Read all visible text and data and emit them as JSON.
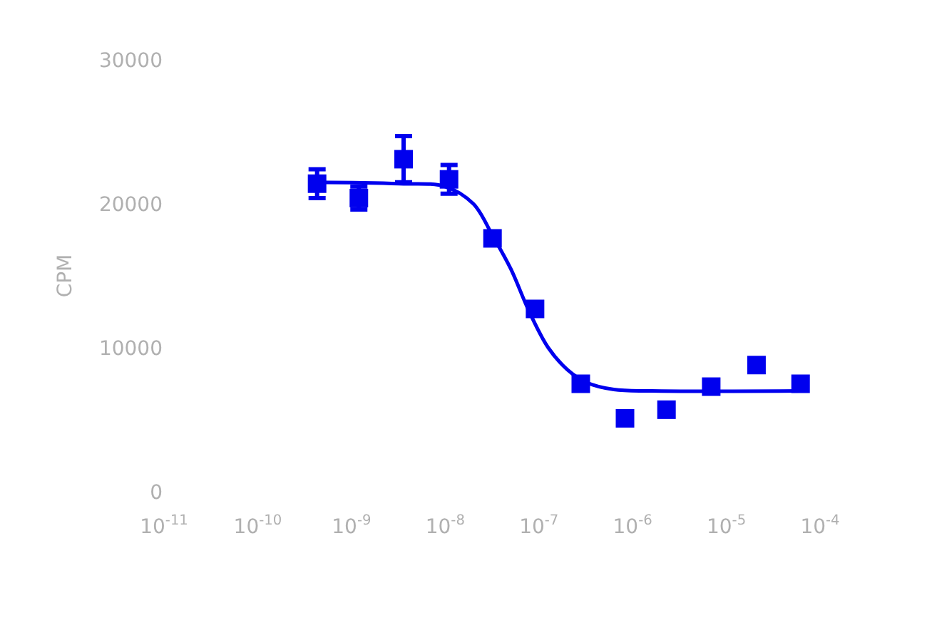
{
  "chart_data": {
    "type": "scatter",
    "ylabel": "CPM",
    "log": "x",
    "xlim": [
      1e-11,
      0.0001
    ],
    "xticks": [
      {
        "value": 1e-11,
        "label": "10$^{-11}$"
      },
      {
        "value": 1e-10,
        "label": "10$^{-10}$"
      },
      {
        "value": 1e-09,
        "label": "10$^{-9}$"
      },
      {
        "value": 1e-08,
        "label": "10$^{-8}$"
      },
      {
        "value": 1e-07,
        "label": "10$^{-7}$"
      },
      {
        "value": 1e-06,
        "label": "10$^{-6}$"
      },
      {
        "value": 1e-05,
        "label": "10$^{-5}$"
      },
      {
        "value": 0.0001,
        "label": "10$^{-4}$"
      }
    ],
    "ylim": [
      0,
      30000
    ],
    "yticks": [
      0,
      10000,
      20000,
      30000
    ],
    "series": [
      {
        "color": "#0000ee",
        "marker": "square",
        "x": [
          4.3e-10,
          1.2e-09,
          3.6e-09,
          1.1e-08,
          3.2e-08,
          9.1e-08,
          2.8e-07,
          8.3e-07,
          2.3e-06,
          6.9e-06,
          2.1e-05,
          6.2e-05
        ],
        "values": [
          21400,
          20400,
          23100,
          21700,
          17600,
          12700,
          7500,
          5100,
          5700,
          7300,
          8800,
          7500
        ],
        "errors": [
          1000,
          800,
          1600,
          1000,
          null,
          null,
          null,
          null,
          null,
          null,
          null,
          null
        ]
      },
      {
        "type": "line",
        "color": "#0000ee",
        "marker": "none",
        "line_style": "solid",
        "x": [
          4e-10,
          3.2e-09,
          1e-08,
          2e-08,
          3.2e-08,
          5e-08,
          7.9e-08,
          1.26e-07,
          2e-07,
          3.2e-07,
          6.3e-07,
          1.6e-06,
          6.3e-05
        ],
        "values": [
          21500,
          21400,
          21200,
          20000,
          17800,
          15500,
          12500,
          10000,
          8500,
          7600,
          7100,
          7000,
          7000
        ]
      }
    ]
  }
}
